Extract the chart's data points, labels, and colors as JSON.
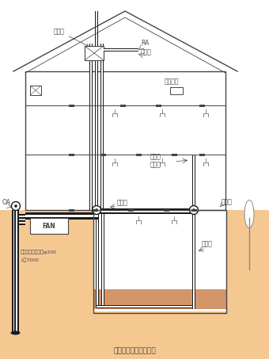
{
  "bg_color": "#ffffff",
  "ground_color": "#f5c892",
  "ground_dark": "#d4956a",
  "line_color": "#444444",
  "pipe_color": "#1a1a1a",
  "title": "地中熱暖暖システム図",
  "title_fontsize": 6.5,
  "fig_width": 3.4,
  "fig_height": 4.53,
  "dpi": 100,
  "labels": {
    "kanki": "換気扇",
    "RA": "RA",
    "natsu_atsu1": "夏の涼",
    "monitor": "モニター",
    "fuyu_dan": "冬の暖",
    "natsu_atsu2": "夏の涼",
    "fan1": "ファン",
    "fan2": "ファン",
    "OA": "OA",
    "FAN": "FAN",
    "pipe_label1": "アルミ蓄熱パイプφ200",
    "pipe_label2": "L＝7000",
    "saiseki": "割栗石"
  }
}
